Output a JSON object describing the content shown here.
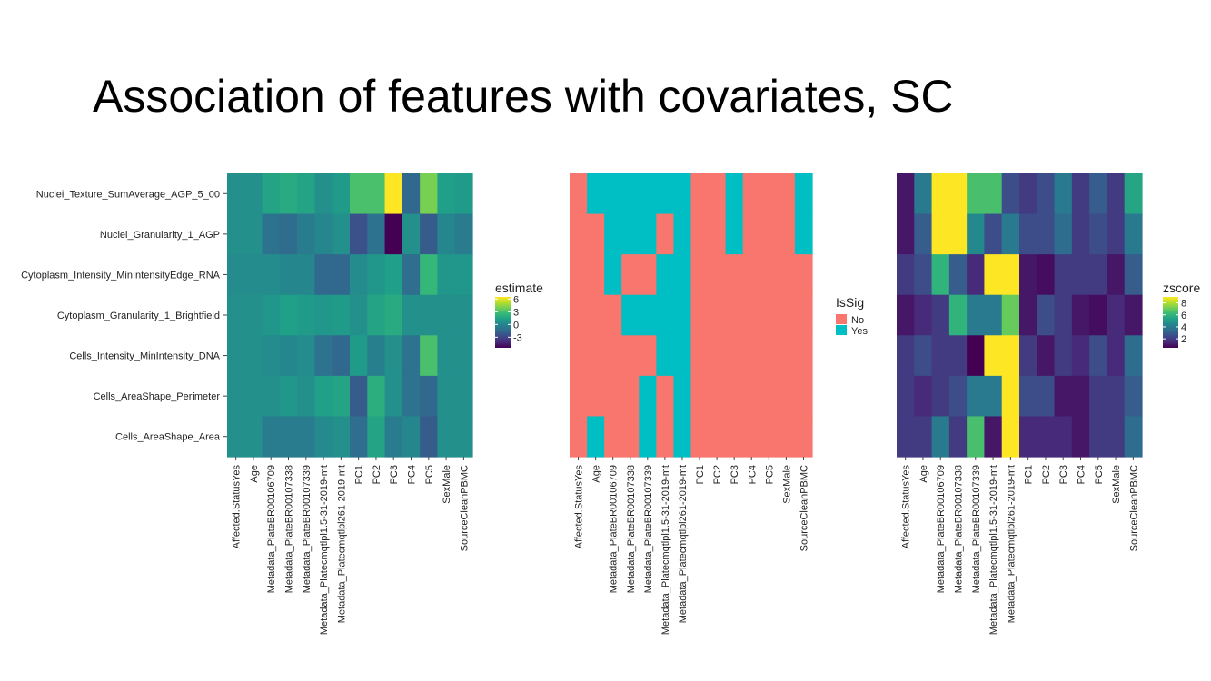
{
  "slide": {
    "title": "Association of features with covariates, SC"
  },
  "colors": {
    "viridis": [
      "#440154",
      "#482878",
      "#3e4989",
      "#31688e",
      "#26828e",
      "#1f9e89",
      "#35b779",
      "#6ece58",
      "#b5de2b",
      "#fde725"
    ],
    "sig_no": "#f8766d",
    "sig_yes": "#00bfc4"
  },
  "chart_data": [
    {
      "type": "heatmap",
      "rows": [
        "Nuclei_Texture_SumAverage_AGP_5_00",
        "Nuclei_Granularity_1_AGP",
        "Cytoplasm_Intensity_MinIntensityEdge_RNA",
        "Cytoplasm_Granularity_1_Brightfield",
        "Cells_Intensity_MinIntensity_DNA",
        "Cells_AreaShape_Perimeter",
        "Cells_AreaShape_Area"
      ],
      "columns": [
        "Affected.StatusYes",
        "Age",
        "Metadata_PlateBR00106709",
        "Metadata_PlateBR00107338",
        "Metadata_PlateBR00107339",
        "Metadata_Platecmqtlpl1.5-31-2019-mt",
        "Metadata_Platecmqtlpl261-2019-mt",
        "PC1",
        "PC2",
        "PC3",
        "PC4",
        "PC5",
        "SexMale",
        "SourceCleanPBMC"
      ],
      "values": [
        [
          0.5,
          0.5,
          1.5,
          1.8,
          1.5,
          0.5,
          1.0,
          3.0,
          3.0,
          6.5,
          -1.5,
          4.0,
          1.2,
          1.0
        ],
        [
          0.5,
          0.5,
          -1.0,
          -1.3,
          -0.5,
          0.0,
          0.5,
          -2.5,
          -1.0,
          -5.5,
          0.5,
          -2.0,
          0.0,
          -0.5
        ],
        [
          0.3,
          0.3,
          0.3,
          0.0,
          0.0,
          -1.5,
          -1.5,
          0.3,
          0.8,
          1.2,
          -1.2,
          2.5,
          0.8,
          0.8
        ],
        [
          0.5,
          0.5,
          0.8,
          1.2,
          1.0,
          0.8,
          1.0,
          0.5,
          1.5,
          1.8,
          0.5,
          0.5,
          0.5,
          0.5
        ],
        [
          0.5,
          0.5,
          0.3,
          0.0,
          0.3,
          -1.0,
          -1.5,
          1.0,
          -0.3,
          0.5,
          -1.0,
          3.0,
          0.5,
          0.5
        ],
        [
          0.5,
          0.5,
          0.5,
          0.8,
          0.5,
          1.2,
          1.5,
          -2.0,
          2.0,
          0.5,
          -1.0,
          -1.5,
          0.5,
          0.5
        ],
        [
          0.5,
          0.5,
          -0.5,
          -0.5,
          -0.5,
          0.2,
          0.5,
          -1.2,
          1.5,
          -0.5,
          0.0,
          -2.0,
          0.5,
          0.5
        ]
      ],
      "legend": {
        "title": "estimate",
        "ticks": [
          6,
          3,
          0,
          -3
        ],
        "range": [
          -5.5,
          6.5
        ],
        "colorscale": "viridis"
      }
    },
    {
      "type": "heatmap",
      "rows": [
        "Nuclei_Texture_SumAverage_AGP_5_00",
        "Nuclei_Granularity_1_AGP",
        "Cytoplasm_Intensity_MinIntensityEdge_RNA",
        "Cytoplasm_Granularity_1_Brightfield",
        "Cells_Intensity_MinIntensity_DNA",
        "Cells_AreaShape_Perimeter",
        "Cells_AreaShape_Area"
      ],
      "columns": [
        "Affected.StatusYes",
        "Age",
        "Metadata_PlateBR00106709",
        "Metadata_PlateBR00107338",
        "Metadata_PlateBR00107339",
        "Metadata_Platecmqtlpl1.5-31-2019-mt",
        "Metadata_Platecmqtlpl261-2019-mt",
        "PC1",
        "PC2",
        "PC3",
        "PC4",
        "PC5",
        "SexMale",
        "SourceCleanPBMC"
      ],
      "values": [
        [
          "No",
          "Yes",
          "Yes",
          "Yes",
          "Yes",
          "Yes",
          "Yes",
          "No",
          "No",
          "Yes",
          "No",
          "No",
          "No",
          "Yes"
        ],
        [
          "No",
          "No",
          "Yes",
          "Yes",
          "Yes",
          "No",
          "Yes",
          "No",
          "No",
          "Yes",
          "No",
          "No",
          "No",
          "Yes"
        ],
        [
          "No",
          "No",
          "Yes",
          "No",
          "No",
          "Yes",
          "Yes",
          "No",
          "No",
          "No",
          "No",
          "No",
          "No",
          "No"
        ],
        [
          "No",
          "No",
          "No",
          "Yes",
          "Yes",
          "Yes",
          "Yes",
          "No",
          "No",
          "No",
          "No",
          "No",
          "No",
          "No"
        ],
        [
          "No",
          "No",
          "No",
          "No",
          "No",
          "Yes",
          "Yes",
          "No",
          "No",
          "No",
          "No",
          "No",
          "No",
          "No"
        ],
        [
          "No",
          "No",
          "No",
          "No",
          "Yes",
          "No",
          "Yes",
          "No",
          "No",
          "No",
          "No",
          "No",
          "No",
          "No"
        ],
        [
          "No",
          "Yes",
          "No",
          "No",
          "Yes",
          "No",
          "Yes",
          "No",
          "No",
          "No",
          "No",
          "No",
          "No",
          "No"
        ]
      ],
      "legend": {
        "title": "IsSig",
        "entries": [
          {
            "label": "No"
          },
          {
            "label": "Yes"
          }
        ]
      }
    },
    {
      "type": "heatmap",
      "rows": [
        "Nuclei_Texture_SumAverage_AGP_5_00",
        "Nuclei_Granularity_1_AGP",
        "Cytoplasm_Intensity_MinIntensityEdge_RNA",
        "Cytoplasm_Granularity_1_Brightfield",
        "Cells_Intensity_MinIntensity_DNA",
        "Cells_AreaShape_Perimeter",
        "Cells_AreaShape_Area"
      ],
      "columns": [
        "Affected.StatusYes",
        "Age",
        "Metadata_PlateBR00106709",
        "Metadata_PlateBR00107338",
        "Metadata_PlateBR00107339",
        "Metadata_Platecmqtlpl1.5-31-2019-mt",
        "Metadata_Platecmqtlpl261-2019-mt",
        "PC1",
        "PC2",
        "PC3",
        "PC4",
        "PC5",
        "SexMale",
        "SourceCleanPBMC"
      ],
      "values": [
        [
          1.0,
          4.0,
          9.0,
          9.0,
          6.5,
          6.5,
          2.5,
          2.0,
          2.5,
          4.0,
          2.0,
          3.0,
          2.0,
          5.5
        ],
        [
          1.0,
          3.0,
          9.0,
          9.0,
          4.5,
          2.5,
          4.0,
          2.5,
          2.5,
          3.5,
          2.0,
          2.5,
          2.0,
          4.0
        ],
        [
          2.0,
          2.5,
          6.0,
          3.0,
          1.5,
          9.0,
          9.0,
          1.0,
          0.8,
          2.0,
          2.0,
          2.0,
          1.0,
          3.0
        ],
        [
          1.0,
          1.5,
          2.0,
          6.0,
          4.0,
          4.0,
          7.0,
          1.0,
          2.5,
          2.0,
          1.0,
          0.8,
          1.5,
          1.0
        ],
        [
          2.0,
          2.5,
          2.0,
          2.0,
          0.5,
          9.0,
          9.0,
          2.0,
          1.0,
          2.0,
          1.5,
          2.5,
          1.5,
          3.5
        ],
        [
          2.0,
          1.5,
          2.0,
          2.5,
          4.0,
          4.0,
          9.0,
          2.5,
          2.5,
          1.0,
          1.0,
          2.0,
          2.0,
          3.0
        ],
        [
          2.0,
          2.0,
          4.0,
          2.0,
          6.5,
          1.0,
          9.0,
          1.5,
          1.5,
          1.5,
          1.0,
          2.0,
          2.0,
          3.5
        ]
      ],
      "legend": {
        "title": "zscore",
        "ticks": [
          8,
          6,
          4,
          2
        ],
        "range": [
          0.5,
          9.0
        ],
        "colorscale": "viridis"
      }
    }
  ]
}
